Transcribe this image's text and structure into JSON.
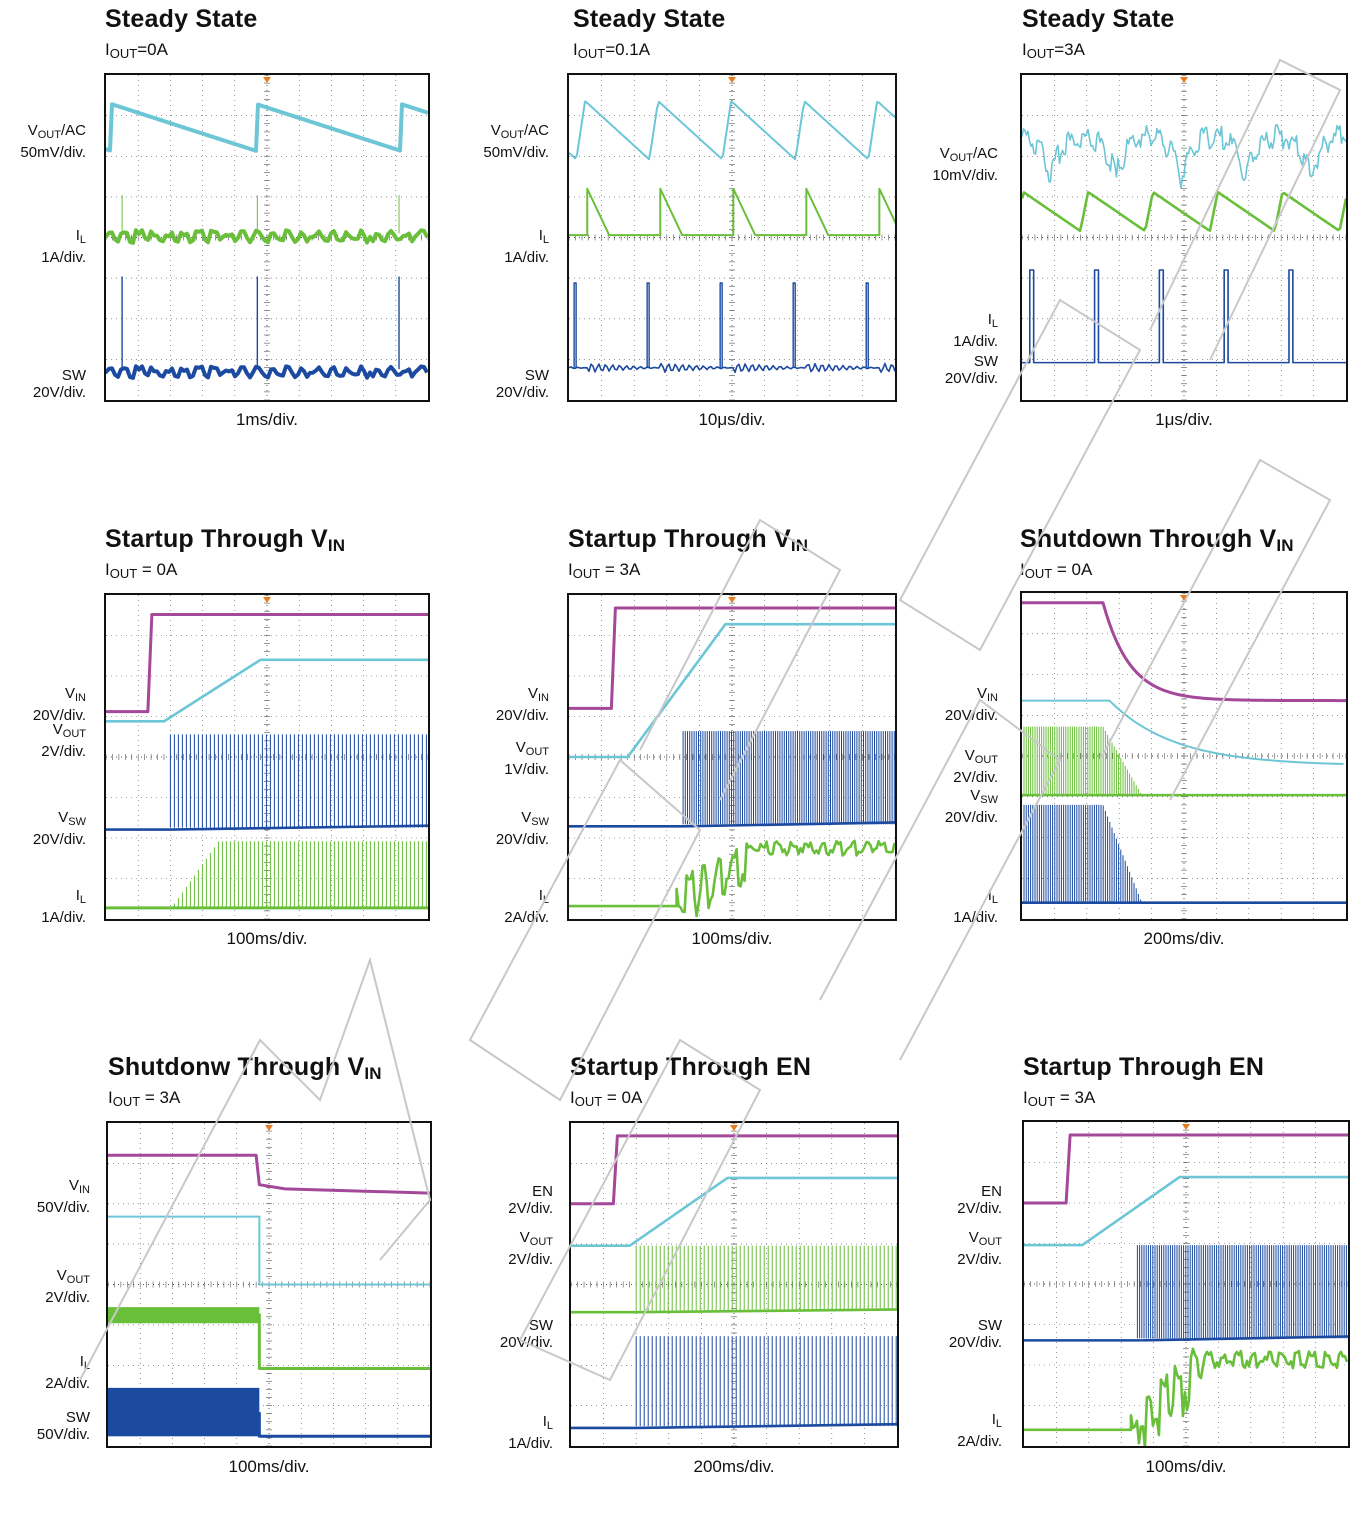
{
  "colors": {
    "vout": "#6cc6d6",
    "il": "#6abf3a",
    "sw": "#1c4aa0",
    "vin": "#a4489a",
    "trigger": "#e67a1e",
    "grid": "#555555"
  },
  "chart_data": [
    {
      "type": "line",
      "id": "p1",
      "title": "Steady State",
      "subtitle": {
        "main": "I",
        "sub": "OUT",
        "rest": "=0A"
      },
      "timebase": "1ms/div.",
      "channels": [
        {
          "label_main": "V",
          "label_sub": "OUT",
          "label_rest": "/AC",
          "scale": "50mV/div.",
          "marker": "2",
          "color": "vout",
          "waveform": "sawtooth-slow"
        },
        {
          "label_main": "I",
          "label_sub": "L",
          "label_rest": "",
          "scale": "1A/div.",
          "marker": "4",
          "color": "il",
          "waveform": "flat-spiky"
        },
        {
          "label_main": "SW",
          "label_sub": "",
          "label_rest": "",
          "scale": "20V/div.",
          "marker": "1",
          "color": "sw",
          "waveform": "rare-pulses"
        }
      ]
    },
    {
      "type": "line",
      "id": "p2",
      "title": "Steady State",
      "subtitle": {
        "main": "I",
        "sub": "OUT",
        "rest": "=0.1A"
      },
      "timebase": "10μs/div.",
      "channels": [
        {
          "label_main": "V",
          "label_sub": "OUT",
          "label_rest": "/AC",
          "scale": "50mV/div.",
          "marker": "2",
          "color": "vout",
          "waveform": "sawtooth-fast"
        },
        {
          "label_main": "I",
          "label_sub": "L",
          "label_rest": "",
          "scale": "1A/div.",
          "marker": "4",
          "color": "il",
          "waveform": "triangle-pulses"
        },
        {
          "label_main": "SW",
          "label_sub": "",
          "label_rest": "",
          "scale": "20V/div.",
          "marker": "1",
          "color": "sw",
          "waveform": "burst-pulses"
        }
      ]
    },
    {
      "type": "line",
      "id": "p3",
      "title": "Steady State",
      "subtitle": {
        "main": "I",
        "sub": "OUT",
        "rest": "=3A"
      },
      "timebase": "1μs/div.",
      "channels": [
        {
          "label_main": "V",
          "label_sub": "OUT",
          "label_rest": "/AC",
          "scale": "10mV/div.",
          "marker": "2",
          "color": "vout",
          "waveform": "ripple-scallop"
        },
        {
          "label_main": "I",
          "label_sub": "L",
          "label_rest": "",
          "scale": "1A/div.",
          "marker": "4",
          "color": "il",
          "waveform": "sawtooth-ccm"
        },
        {
          "label_main": "SW",
          "label_sub": "",
          "label_rest": "",
          "scale": "20V/div.",
          "marker": "1",
          "color": "sw",
          "waveform": "square-pulses"
        }
      ]
    },
    {
      "type": "line",
      "id": "p4",
      "title": "Startup Through V",
      "title_sub": "IN",
      "subtitle": {
        "main": "I",
        "sub": "OUT",
        "rest": " = 0A"
      },
      "timebase": "100ms/div.",
      "channels": [
        {
          "label_main": "V",
          "label_sub": "IN",
          "label_rest": "",
          "scale": "20V/div.",
          "marker": "3",
          "color": "vin",
          "waveform": "step-up"
        },
        {
          "label_main": "V",
          "label_sub": "OUT",
          "label_rest": "",
          "scale": "2V/div.",
          "marker": "2",
          "color": "vout",
          "waveform": "ramp-up"
        },
        {
          "label_main": "V",
          "label_sub": "SW",
          "label_rest": "",
          "scale": "20V/div.",
          "marker": "1",
          "color": "sw",
          "waveform": "switching-on"
        },
        {
          "label_main": "I",
          "label_sub": "L",
          "label_rest": "",
          "scale": "1A/div.",
          "marker": "4",
          "color": "il",
          "waveform": "switching-il-dcm"
        }
      ]
    },
    {
      "type": "line",
      "id": "p5",
      "title": "Startup Through V",
      "title_sub": "IN",
      "subtitle": {
        "main": "I",
        "sub": "OUT",
        "rest": " = 3A"
      },
      "timebase": "100ms/div.",
      "channels": [
        {
          "label_main": "V",
          "label_sub": "IN",
          "label_rest": "",
          "scale": "20V/div.",
          "marker": "3",
          "color": "vin",
          "waveform": "step-up"
        },
        {
          "label_main": "V",
          "label_sub": "OUT",
          "label_rest": "",
          "scale": "1V/div.",
          "marker": "2",
          "color": "vout",
          "waveform": "ramp-up"
        },
        {
          "label_main": "V",
          "label_sub": "SW",
          "label_rest": "",
          "scale": "20V/div.",
          "marker": "1",
          "color": "sw",
          "waveform": "switching-dense"
        },
        {
          "label_main": "I",
          "label_sub": "L",
          "label_rest": "",
          "scale": "2A/div.",
          "marker": "4",
          "color": "il",
          "waveform": "il-rise"
        }
      ]
    },
    {
      "type": "line",
      "id": "p6",
      "title": "Shutdown Through V",
      "title_sub": "IN",
      "subtitle": {
        "main": "I",
        "sub": "OUT",
        "rest": " = 0A"
      },
      "timebase": "200ms/div.",
      "channels": [
        {
          "label_main": "V",
          "label_sub": "IN",
          "label_rest": "",
          "scale": "20V/div.",
          "marker": "3",
          "color": "vin",
          "waveform": "decay"
        },
        {
          "label_main": "V",
          "label_sub": "OUT",
          "label_rest": "",
          "scale": "2V/div.",
          "marker": "2",
          "color": "vout",
          "waveform": "decay-slow"
        },
        {
          "label_main": "V",
          "label_sub": "SW",
          "label_rest": "",
          "scale": "20V/div.",
          "marker": "4",
          "color": "il",
          "waveform": "switching-stop"
        },
        {
          "label_main": "I",
          "label_sub": "L",
          "label_rest": "",
          "scale": "1A/div.",
          "marker": "1",
          "color": "sw",
          "waveform": "switching-stop-big"
        }
      ]
    },
    {
      "type": "line",
      "id": "p7",
      "title": "Shutdonw Through V",
      "title_sub": "IN",
      "subtitle": {
        "main": "I",
        "sub": "OUT",
        "rest": " = 3A"
      },
      "timebase": "100ms/div.",
      "channels": [
        {
          "label_main": "V",
          "label_sub": "IN",
          "label_rest": "",
          "scale": "50V/div.",
          "marker": "3",
          "color": "vin",
          "waveform": "step-down-small"
        },
        {
          "label_main": "V",
          "label_sub": "OUT",
          "label_rest": "",
          "scale": "2V/div.",
          "marker": "2",
          "color": "vout",
          "waveform": "step-down"
        },
        {
          "label_main": "I",
          "label_sub": "L",
          "label_rest": "",
          "scale": "2A/div.",
          "marker": "4",
          "color": "il",
          "waveform": "band-step-down"
        },
        {
          "label_main": "SW",
          "label_sub": "",
          "label_rest": "",
          "scale": "50V/div.",
          "marker": "1",
          "color": "sw",
          "waveform": "band-stop"
        }
      ]
    },
    {
      "type": "line",
      "id": "p8",
      "title": "Startup Through EN",
      "title_sub": "",
      "subtitle": {
        "main": "I",
        "sub": "OUT",
        "rest": " = 0A"
      },
      "timebase": "200ms/div.",
      "channels": [
        {
          "label_main": "EN",
          "label_sub": "",
          "label_rest": "",
          "scale": "2V/div.",
          "marker": "3",
          "color": "vin",
          "waveform": "step-up"
        },
        {
          "label_main": "V",
          "label_sub": "OUT",
          "label_rest": "",
          "scale": "2V/div.",
          "marker": "2",
          "color": "vout",
          "waveform": "ramp-up"
        },
        {
          "label_main": "SW",
          "label_sub": "",
          "label_rest": "",
          "scale": "20V/div.",
          "marker": "4",
          "color": "il",
          "waveform": "switching-on"
        },
        {
          "label_main": "I",
          "label_sub": "L",
          "label_rest": "",
          "scale": "1A/div.",
          "marker": "1",
          "color": "sw",
          "waveform": "switching-on-big"
        }
      ]
    },
    {
      "type": "line",
      "id": "p9",
      "title": "Startup Through EN",
      "title_sub": "",
      "subtitle": {
        "main": "I",
        "sub": "OUT",
        "rest": " = 3A"
      },
      "timebase": "100ms/div.",
      "channels": [
        {
          "label_main": "EN",
          "label_sub": "",
          "label_rest": "",
          "scale": "2V/div.",
          "marker": "3",
          "color": "vin",
          "waveform": "step-up"
        },
        {
          "label_main": "V",
          "label_sub": "OUT",
          "label_rest": "",
          "scale": "2V/div.",
          "marker": "2",
          "color": "vout",
          "waveform": "ramp-up"
        },
        {
          "label_main": "SW",
          "label_sub": "",
          "label_rest": "",
          "scale": "20V/div.",
          "marker": "1",
          "color": "sw",
          "waveform": "switching-dense"
        },
        {
          "label_main": "I",
          "label_sub": "L",
          "label_rest": "",
          "scale": "2A/div.",
          "marker": "4",
          "color": "il",
          "waveform": "il-rise"
        }
      ]
    }
  ]
}
